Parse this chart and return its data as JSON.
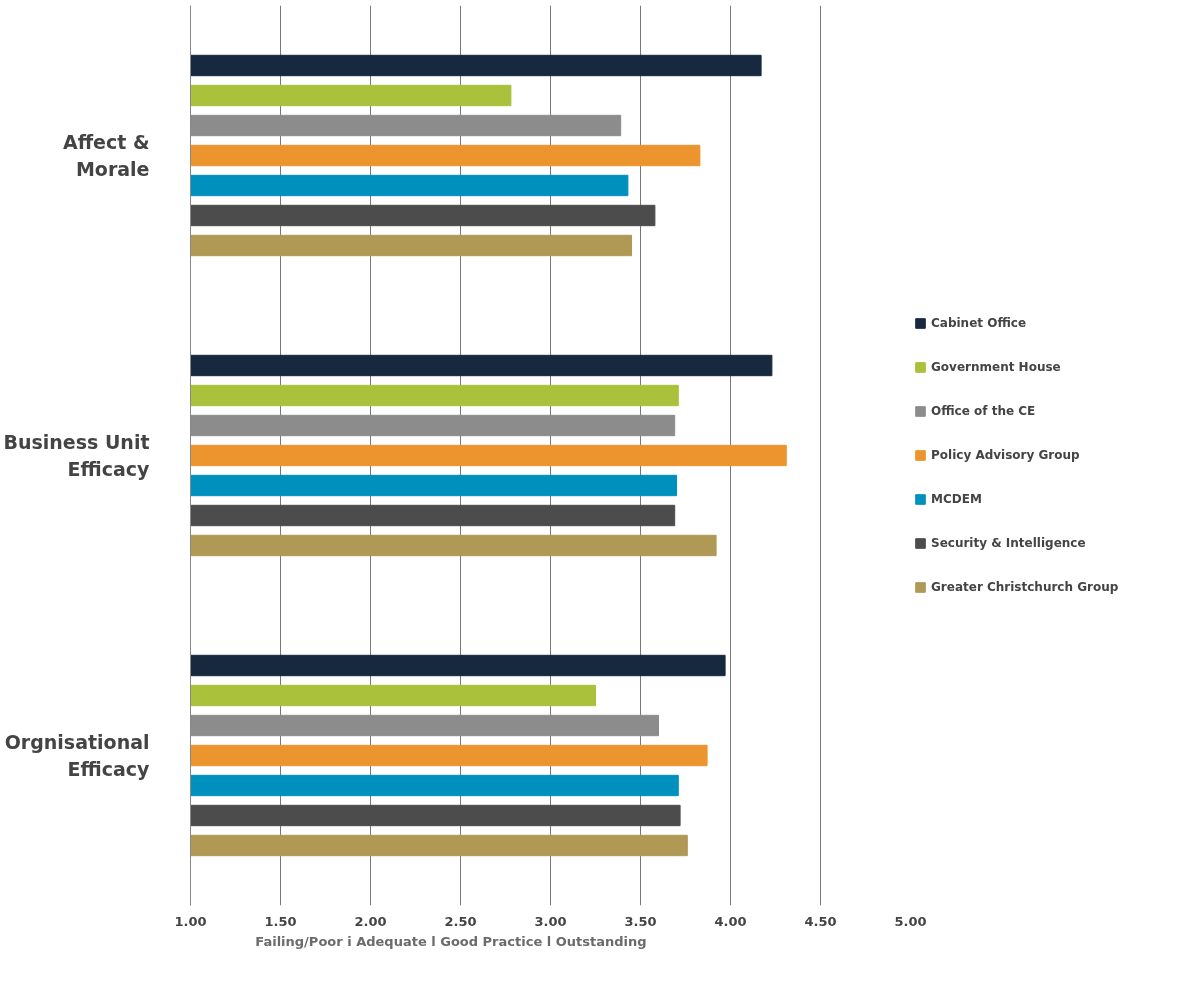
{
  "chart_data": {
    "type": "bar",
    "orientation": "horizontal",
    "categories": [
      "Affect & Morale",
      "Business Unit Efficacy",
      "Orgnisational Efficacy"
    ],
    "series": [
      {
        "name": "Cabinet Office",
        "color": "#17293f",
        "values": [
          4.17,
          4.23,
          3.97
        ]
      },
      {
        "name": "Government House",
        "color": "#a9c13b",
        "values": [
          2.78,
          3.71,
          3.25
        ]
      },
      {
        "name": "Office of the CE",
        "color": "#8c8c8c",
        "values": [
          3.39,
          3.69,
          3.6
        ]
      },
      {
        "name": "Policy Advisory Group",
        "color": "#ec952e",
        "values": [
          3.83,
          4.31,
          3.87
        ]
      },
      {
        "name": "MCDEM",
        "color": "#0090bd",
        "values": [
          3.43,
          3.7,
          3.71
        ]
      },
      {
        "name": "Security & Intelligence",
        "color": "#4c4c4c",
        "values": [
          3.58,
          3.69,
          3.72
        ]
      },
      {
        "name": "Greater Christchurch Group",
        "color": "#b09855",
        "values": [
          3.45,
          3.92,
          3.76
        ]
      }
    ],
    "xlim": [
      1,
      5
    ],
    "xticks": [
      {
        "value": 1,
        "label": "1.00"
      },
      {
        "value": 1.5,
        "label": "1.50"
      },
      {
        "value": 2,
        "label": "2.00"
      },
      {
        "value": 2.5,
        "label": "2.50"
      },
      {
        "value": 3,
        "label": "3.00"
      },
      {
        "value": 3.5,
        "label": "3.50"
      },
      {
        "value": 4,
        "label": "4.00"
      },
      {
        "value": 4.5,
        "label": "4.50"
      },
      {
        "value": 5,
        "label": "5.00"
      }
    ],
    "xlabel": "Failing/Poor          i          Adequate          l          Good Practice     l     Outstanding",
    "grid": "x",
    "legend": "right"
  }
}
